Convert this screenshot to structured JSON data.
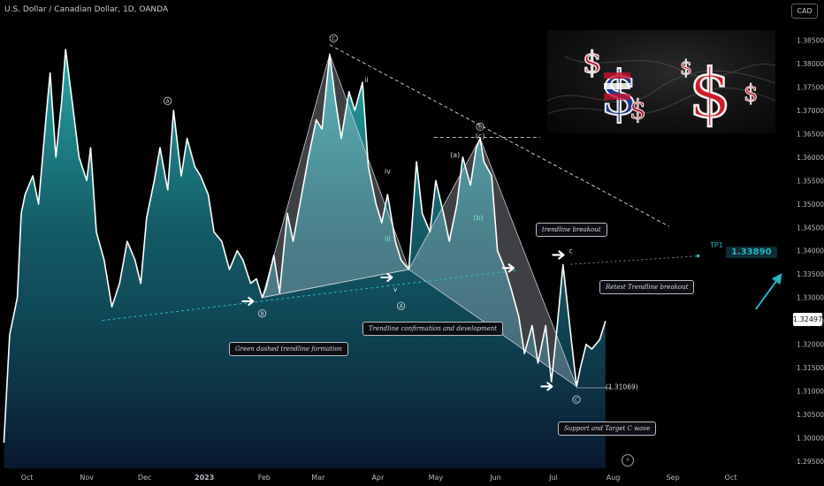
{
  "header": {
    "symbol_line": "U.S. Dollar / Canadian Dollar, 1D, OANDA",
    "currency_button": "CAD",
    "last_price": "1.32497"
  },
  "colors": {
    "line": "#ffffff",
    "area_top": "#2bb3b0",
    "area_bottom": "#0a1a33",
    "trendline": "#2ab8c8",
    "tp": "#22b5c3",
    "axis_text": "#b7bac2"
  },
  "annotations": {
    "green_dashed": "Green dashed trendline formation",
    "confirmation": "Trendline confirmation and development",
    "breakout": "trendline breakout",
    "retest": "Retest Trendline breakout",
    "support": "Support and Target C wave",
    "low_value": "(1.31069)",
    "tp_name": "TP1",
    "tp_value": "1.33890"
  },
  "wave_labels": {
    "A": "A",
    "B": "B",
    "C": "C",
    "ii": "ii",
    "iii": "iii",
    "iv": "iv",
    "v": "v",
    "a": "(a)",
    "b": "(b)",
    "c_paren": "(c)",
    "c": "c"
  },
  "photo": {
    "caption": ""
  },
  "chart_data": {
    "type": "area",
    "title": "U.S. Dollar / Canadian Dollar, 1D, OANDA",
    "xlabel": "",
    "ylabel": "",
    "x_ticks": [
      "Oct",
      "Nov",
      "Dec",
      "2023",
      "Feb",
      "Mar",
      "Apr",
      "May",
      "Jun",
      "Jul",
      "Aug",
      "Sep",
      "Oct"
    ],
    "y_ticks": [
      "1.38500",
      "1.38000",
      "1.37500",
      "1.37000",
      "1.36500",
      "1.36000",
      "1.35500",
      "1.35000",
      "1.34500",
      "1.34000",
      "1.33500",
      "1.33000",
      "1.32500",
      "1.32000",
      "1.31500",
      "1.31000",
      "1.30500",
      "1.30000",
      "1.29500"
    ],
    "ylim": [
      1.2935,
      1.3898
    ],
    "grid": false,
    "x_dates": [
      "2022-09-19",
      "2022-09-22",
      "2022-09-26",
      "2022-09-28",
      "2022-09-30",
      "2022-10-04",
      "2022-10-07",
      "2022-10-11",
      "2022-10-13",
      "2022-10-16",
      "2022-10-19",
      "2022-10-21",
      "2022-10-25",
      "2022-10-28",
      "2022-11-01",
      "2022-11-03",
      "2022-11-06",
      "2022-11-10",
      "2022-11-14",
      "2022-11-18",
      "2022-11-22",
      "2022-11-26",
      "2022-11-29",
      "2022-12-02",
      "2022-12-06",
      "2022-12-09",
      "2022-12-13",
      "2022-12-16",
      "2022-12-20",
      "2022-12-23",
      "2022-12-27",
      "2022-12-30",
      "2023-01-03",
      "2023-01-06",
      "2023-01-10",
      "2023-01-14",
      "2023-01-18",
      "2023-01-21",
      "2023-01-25",
      "2023-01-28",
      "2023-01-31",
      "2023-02-02",
      "2023-02-06",
      "2023-02-09",
      "2023-02-13",
      "2023-02-16",
      "2023-02-20",
      "2023-02-24",
      "2023-02-28",
      "2023-03-03",
      "2023-03-07",
      "2023-03-10",
      "2023-03-13",
      "2023-03-17",
      "2023-03-20",
      "2023-03-24",
      "2023-03-27",
      "2023-03-31",
      "2023-04-03",
      "2023-04-06",
      "2023-04-10",
      "2023-04-13",
      "2023-04-17",
      "2023-04-21",
      "2023-04-24",
      "2023-04-28",
      "2023-05-01",
      "2023-05-05",
      "2023-05-08",
      "2023-05-12",
      "2023-05-15",
      "2023-05-19",
      "2023-05-22",
      "2023-05-24",
      "2023-05-26",
      "2023-05-30",
      "2023-06-02",
      "2023-06-06",
      "2023-06-09",
      "2023-06-13",
      "2023-06-16",
      "2023-06-20",
      "2023-06-23",
      "2023-06-27",
      "2023-06-30",
      "2023-07-03",
      "2023-07-06",
      "2023-07-10",
      "2023-07-13",
      "2023-07-15",
      "2023-07-18",
      "2023-07-21",
      "2023-07-25",
      "2023-07-28"
    ],
    "values": [
      1.299,
      1.322,
      1.33,
      1.348,
      1.352,
      1.356,
      1.35,
      1.369,
      1.378,
      1.36,
      1.372,
      1.383,
      1.37,
      1.36,
      1.355,
      1.362,
      1.344,
      1.338,
      1.328,
      1.333,
      1.342,
      1.338,
      1.333,
      1.347,
      1.355,
      1.362,
      1.353,
      1.37,
      1.356,
      1.364,
      1.358,
      1.356,
      1.352,
      1.344,
      1.342,
      1.336,
      1.34,
      1.338,
      1.333,
      1.334,
      1.33,
      1.332,
      1.339,
      1.331,
      1.348,
      1.342,
      1.351,
      1.36,
      1.368,
      1.366,
      1.382,
      1.372,
      1.364,
      1.374,
      1.37,
      1.376,
      1.358,
      1.35,
      1.346,
      1.352,
      1.342,
      1.338,
      1.336,
      1.359,
      1.348,
      1.344,
      1.355,
      1.348,
      1.342,
      1.35,
      1.36,
      1.354,
      1.362,
      1.364,
      1.359,
      1.356,
      1.34,
      1.336,
      1.332,
      1.326,
      1.318,
      1.324,
      1.316,
      1.324,
      1.312,
      1.324,
      1.337,
      1.322,
      1.311,
      1.315,
      1.32,
      1.319,
      1.321,
      1.325
    ]
  }
}
